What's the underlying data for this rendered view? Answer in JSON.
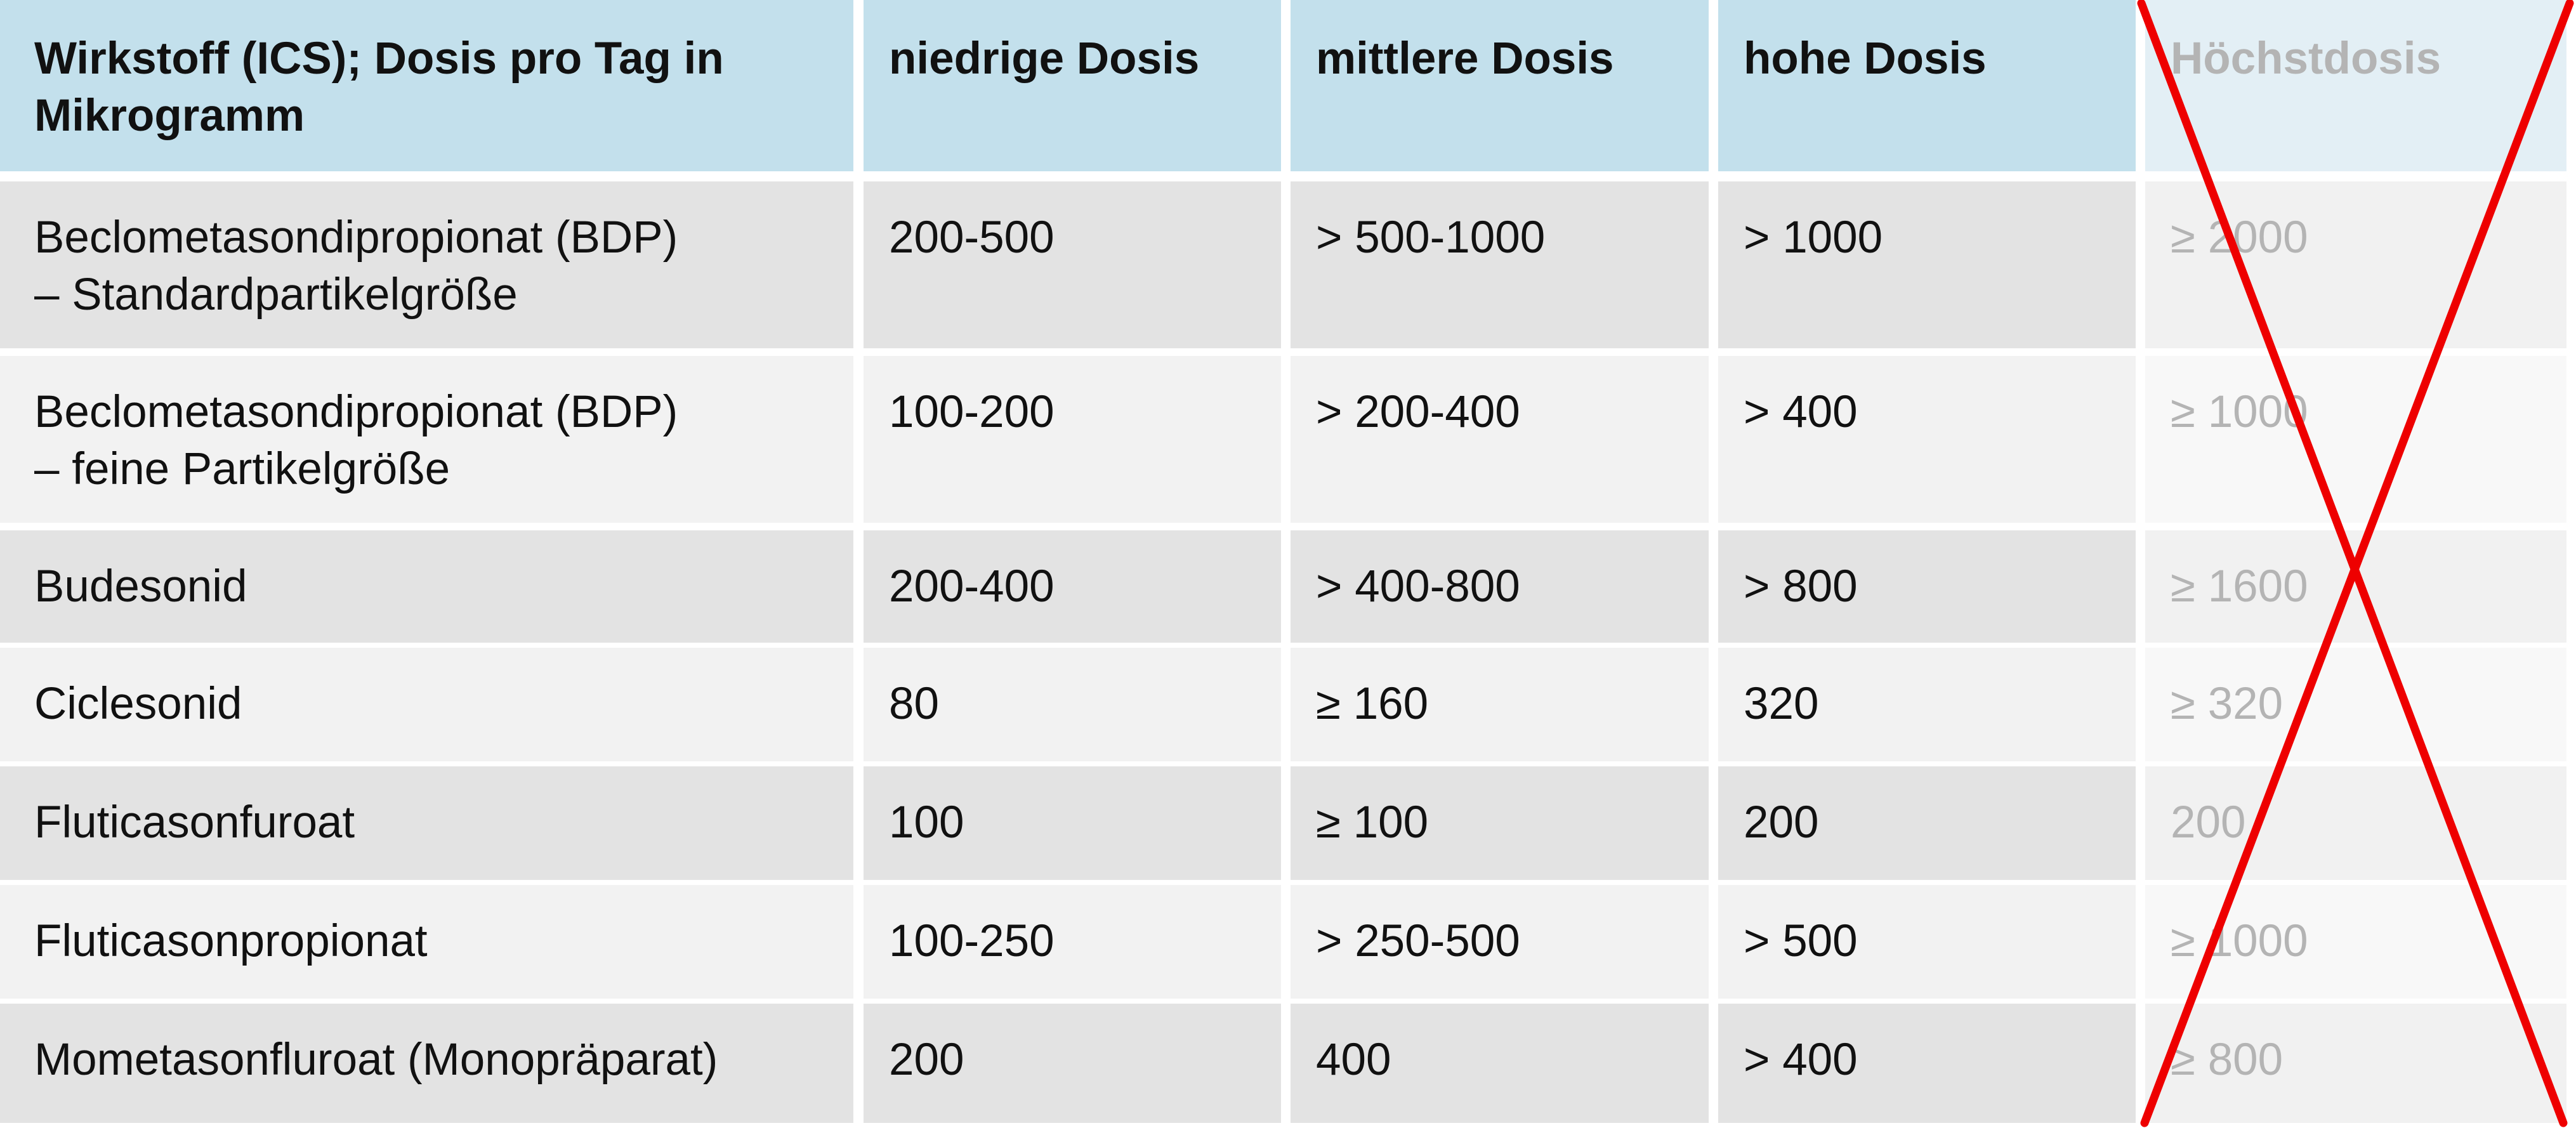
{
  "table": {
    "headers": [
      [
        "Wirkstoff (ICS); Dosis pro Tag in",
        "Mikrogramm"
      ],
      [
        "niedrige Dosis"
      ],
      [
        "mittlere Dosis"
      ],
      [
        "hohe Dosis"
      ],
      [
        "Höchstdosis"
      ]
    ],
    "rows": [
      [
        [
          "Beclometasondipropionat (BDP)",
          "– Standardpartikelgröße"
        ],
        [
          "200-500"
        ],
        [
          "> 500-1000"
        ],
        [
          "> 1000"
        ],
        [
          "≥ 2000"
        ]
      ],
      [
        [
          "Beclometasondipropionat (BDP)",
          "– feine Partikelgröße"
        ],
        [
          "100-200"
        ],
        [
          "> 200-400"
        ],
        [
          "> 400"
        ],
        [
          "≥ 1000"
        ]
      ],
      [
        [
          "Budesonid"
        ],
        [
          "200-400"
        ],
        [
          "> 400-800"
        ],
        [
          "> 800"
        ],
        [
          "≥ 1600"
        ]
      ],
      [
        [
          "Ciclesonid"
        ],
        [
          "80"
        ],
        [
          "≥ 160"
        ],
        [
          "320"
        ],
        [
          "≥ 320"
        ]
      ],
      [
        [
          "Fluticasonfuroat"
        ],
        [
          "100"
        ],
        [
          "≥ 100"
        ],
        [
          "200"
        ],
        [
          "200"
        ]
      ],
      [
        [
          "Fluticasonpropionat"
        ],
        [
          "100-250"
        ],
        [
          "> 250-500"
        ],
        [
          "> 500"
        ],
        [
          "≥ 1000"
        ]
      ],
      [
        [
          "Mometasonfluroat (Monopräparat)"
        ],
        [
          "200"
        ],
        [
          "400"
        ],
        [
          "> 400"
        ],
        [
          "≥ 800"
        ]
      ]
    ],
    "crossed_out_column": 4
  },
  "colors": {
    "header_bg": "#c3e0ec",
    "header_faded_bg": "#e3eff5",
    "row_dark": "#e3e3e3",
    "row_light": "#f2f2f2",
    "faded_text": "#b4b4b4",
    "cross_stroke": "#ee0000"
  }
}
